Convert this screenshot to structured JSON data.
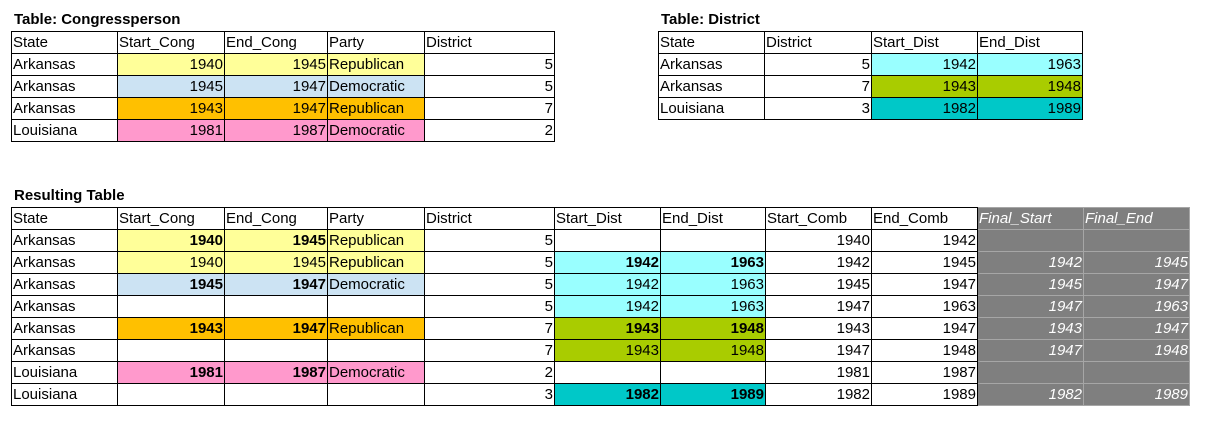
{
  "congress": {
    "title": "Table: Congressperson",
    "headers": [
      "State",
      "Start_Cong",
      "End_Cong",
      "Party",
      "District"
    ],
    "rows": [
      {
        "state": "Arkansas",
        "start": "1940",
        "end": "1945",
        "party": "Republican",
        "district": "5",
        "color": "y"
      },
      {
        "state": "Arkansas",
        "start": "1945",
        "end": "1947",
        "party": "Democratic",
        "district": "5",
        "color": "lb"
      },
      {
        "state": "Arkansas",
        "start": "1943",
        "end": "1947",
        "party": "Republican",
        "district": "7",
        "color": "o"
      },
      {
        "state": "Louisiana",
        "start": "1981",
        "end": "1987",
        "party": "Democratic",
        "district": "2",
        "color": "p"
      }
    ]
  },
  "district": {
    "title": "Table: District",
    "headers": [
      "State",
      "District",
      "Start_Dist",
      "End_Dist"
    ],
    "rows": [
      {
        "state": "Arkansas",
        "district": "5",
        "start": "1942",
        "end": "1963",
        "color": "c"
      },
      {
        "state": "Arkansas",
        "district": "7",
        "start": "1943",
        "end": "1948",
        "color": "g"
      },
      {
        "state": "Louisiana",
        "district": "3",
        "start": "1982",
        "end": "1989",
        "color": "t"
      }
    ]
  },
  "result": {
    "title": "Resulting Table",
    "headers": [
      "State",
      "Start_Cong",
      "End_Cong",
      "Party",
      "District",
      "Start_Dist",
      "End_Dist",
      "Start_Comb",
      "End_Comb",
      "Final_Start",
      "Final_End"
    ],
    "rows": [
      {
        "state": "Arkansas",
        "sc": "1940",
        "ec": "1945",
        "party": "Republican",
        "district": "5",
        "sd": "",
        "ed": "",
        "scomb": "1940",
        "ecomb": "1942",
        "fs": "",
        "fe": "",
        "ccol": "y",
        "dcol": "",
        "cbold": true,
        "dbold": false
      },
      {
        "state": "Arkansas",
        "sc": "1940",
        "ec": "1945",
        "party": "Republican",
        "district": "5",
        "sd": "1942",
        "ed": "1963",
        "scomb": "1942",
        "ecomb": "1945",
        "fs": "1942",
        "fe": "1945",
        "ccol": "y",
        "dcol": "c",
        "cbold": false,
        "dbold": true
      },
      {
        "state": "Arkansas",
        "sc": "1945",
        "ec": "1947",
        "party": "Democratic",
        "district": "5",
        "sd": "1942",
        "ed": "1963",
        "scomb": "1945",
        "ecomb": "1947",
        "fs": "1945",
        "fe": "1947",
        "ccol": "lb",
        "dcol": "c",
        "cbold": true,
        "dbold": false
      },
      {
        "state": "Arkansas",
        "sc": "",
        "ec": "",
        "party": "",
        "district": "5",
        "sd": "1942",
        "ed": "1963",
        "scomb": "1947",
        "ecomb": "1963",
        "fs": "1947",
        "fe": "1963",
        "ccol": "",
        "dcol": "c",
        "cbold": false,
        "dbold": false
      },
      {
        "state": "Arkansas",
        "sc": "1943",
        "ec": "1947",
        "party": "Republican",
        "district": "7",
        "sd": "1943",
        "ed": "1948",
        "scomb": "1943",
        "ecomb": "1947",
        "fs": "1943",
        "fe": "1947",
        "ccol": "o",
        "dcol": "g",
        "cbold": true,
        "dbold": true
      },
      {
        "state": "Arkansas",
        "sc": "",
        "ec": "",
        "party": "",
        "district": "7",
        "sd": "1943",
        "ed": "1948",
        "scomb": "1947",
        "ecomb": "1948",
        "fs": "1947",
        "fe": "1948",
        "ccol": "",
        "dcol": "g",
        "cbold": false,
        "dbold": false
      },
      {
        "state": "Louisiana",
        "sc": "1981",
        "ec": "1987",
        "party": "Democratic",
        "district": "2",
        "sd": "",
        "ed": "",
        "scomb": "1981",
        "ecomb": "1987",
        "fs": "",
        "fe": "",
        "ccol": "p",
        "dcol": "",
        "cbold": true,
        "dbold": false
      },
      {
        "state": "Louisiana",
        "sc": "",
        "ec": "",
        "party": "",
        "district": "3",
        "sd": "1982",
        "ed": "1989",
        "scomb": "1982",
        "ecomb": "1989",
        "fs": "1982",
        "fe": "1989",
        "ccol": "",
        "dcol": "t",
        "cbold": false,
        "dbold": true
      }
    ]
  }
}
